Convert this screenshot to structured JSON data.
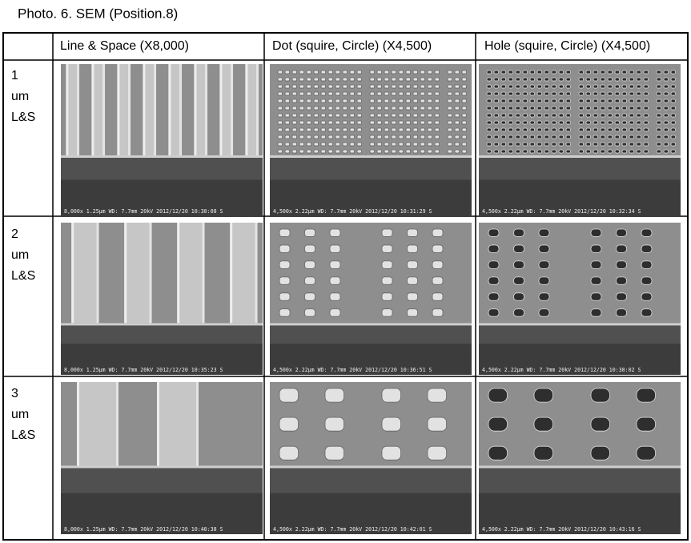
{
  "title": "Photo. 6. SEM (Position.8)",
  "table": {
    "header": [
      "Line & Space  (X8,000)",
      "Dot (squire, Circle)  (X4,500)",
      "Hole (squire, Circle)  (X4,500)"
    ],
    "rows": [
      {
        "label": [
          "1",
          "um",
          "L&S"
        ],
        "captions": [
          "8,000x 1.25μm WD: 7.7mm 20kV 2012/12/20 10:30:08 S",
          "4,500x 2.22μm WD: 7.7mm 20kV 2012/12/20 10:31:29 S",
          "4,500x 2.22μm WD: 7.7mm 20kV 2012/12/20 10:32:34 S"
        ]
      },
      {
        "label": [
          "2",
          "um",
          "L&S"
        ],
        "captions": [
          "8,000x 1.25μm WD: 7.7mm 20kV 2012/12/20 10:35:23 S",
          "4,500x 2.22μm WD: 7.7mm 20kV 2012/12/20 10:36:51 S",
          "4,500x 2.22μm WD: 7.7mm 20kV 2012/12/20 10:38:02 S"
        ]
      },
      {
        "label": [
          "3",
          "um",
          "L&S"
        ],
        "captions": [
          "8,000x 1.25μm WD: 7.7mm 20kV 2012/12/20 10:40:38 S",
          "4,500x 2.22μm WD: 7.7mm 20kV 2012/12/20 10:42:01 S",
          "4,500x 2.22μm WD: 7.7mm 20kV 2012/12/20 10:43:16 S"
        ]
      }
    ]
  }
}
